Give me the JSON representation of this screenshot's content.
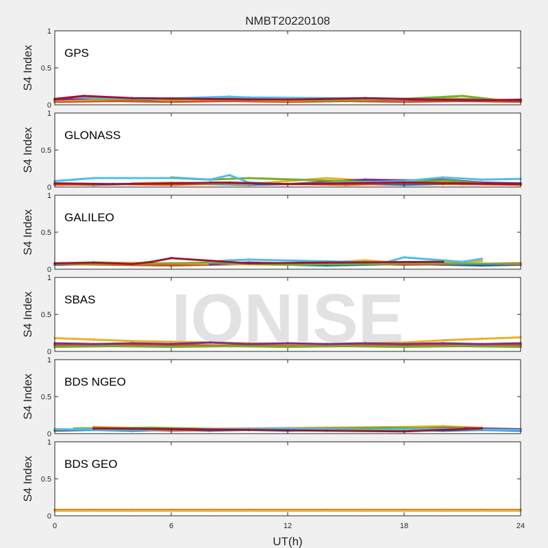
{
  "figure_title": "NMBT20220108",
  "watermark": "IONISE",
  "chart_data": {
    "type": "scatter",
    "title": "NMBT20220108",
    "xlabel": "UT(h)",
    "ylabel": "S4 Index",
    "xlim": [
      0,
      24
    ],
    "ylim": [
      0,
      1
    ],
    "xticks": [
      "0",
      "6",
      "12",
      "18",
      "24"
    ],
    "yticks": [
      "0",
      "0.5",
      "1"
    ],
    "grid": false,
    "series_colors": [
      "#0072bd",
      "#d95319",
      "#edb120",
      "#7e2f8e",
      "#77ac30",
      "#4dbeee",
      "#a2142f"
    ],
    "panels": [
      {
        "name": "GPS",
        "series": [
          {
            "x": [
              0,
              2,
              4,
              6,
              8,
              10,
              12,
              14,
              16,
              18,
              20,
              22,
              24
            ],
            "y": [
              0.05,
              0.07,
              0.06,
              0.08,
              0.07,
              0.06,
              0.05,
              0.07,
              0.06,
              0.08,
              0.07,
              0.06,
              0.05
            ]
          },
          {
            "x": [
              0,
              3,
              6,
              9,
              12,
              15,
              18,
              21,
              24
            ],
            "y": [
              0.04,
              0.05,
              0.04,
              0.05,
              0.04,
              0.05,
              0.04,
              0.05,
              0.04
            ]
          },
          {
            "x": [
              0,
              4,
              8,
              12,
              16,
              20,
              24
            ],
            "y": [
              0.06,
              0.08,
              0.07,
              0.06,
              0.07,
              0.09,
              0.06
            ]
          },
          {
            "x": [
              0,
              2,
              6,
              10,
              14,
              18,
              22,
              24
            ],
            "y": [
              0.07,
              0.09,
              0.08,
              0.07,
              0.08,
              0.07,
              0.06,
              0.07
            ]
          },
          {
            "x": [
              2,
              6,
              10,
              14,
              18,
              21,
              23
            ],
            "y": [
              0.08,
              0.07,
              0.09,
              0.06,
              0.08,
              0.12,
              0.06
            ]
          },
          {
            "x": [
              1,
              5,
              9,
              10,
              14,
              18,
              22
            ],
            "y": [
              0.1,
              0.08,
              0.11,
              0.1,
              0.09,
              0.08,
              0.07
            ]
          },
          {
            "x": [
              0,
              1.5,
              4,
              8,
              12,
              16,
              20,
              24
            ],
            "y": [
              0.08,
              0.12,
              0.09,
              0.08,
              0.07,
              0.09,
              0.07,
              0.06
            ]
          }
        ]
      },
      {
        "name": "GLONASS",
        "series": [
          {
            "x": [
              0,
              2,
              4,
              6,
              8,
              10,
              12,
              14,
              16,
              18,
              20,
              22,
              24
            ],
            "y": [
              0.04,
              0.03,
              0.04,
              0.05,
              0.04,
              0.03,
              0.04,
              0.05,
              0.04,
              0.03,
              0.04,
              0.05,
              0.04
            ]
          },
          {
            "x": [
              0,
              3,
              6,
              9,
              12,
              15,
              18,
              21,
              24
            ],
            "y": [
              0.03,
              0.04,
              0.03,
              0.05,
              0.04,
              0.03,
              0.05,
              0.04,
              0.03
            ]
          },
          {
            "x": [
              4,
              6,
              8,
              10,
              14,
              16,
              18,
              20,
              22
            ],
            "y": [
              0.05,
              0.06,
              0.05,
              0.04,
              0.12,
              0.09,
              0.08,
              0.07,
              0.06
            ]
          },
          {
            "x": [
              8,
              10,
              12,
              16,
              18,
              20,
              22,
              24
            ],
            "y": [
              0.06,
              0.05,
              0.04,
              0.1,
              0.09,
              0.1,
              0.06,
              0.05
            ]
          },
          {
            "x": [
              6,
              8,
              10,
              16,
              18,
              20,
              22
            ],
            "y": [
              0.13,
              0.1,
              0.12,
              0.07,
              0.06,
              0.09,
              0.05
            ]
          },
          {
            "x": [
              0,
              1,
              2,
              6,
              8,
              9,
              10,
              12,
              18,
              20,
              22,
              24
            ],
            "y": [
              0.08,
              0.1,
              0.12,
              0.12,
              0.1,
              0.16,
              0.06,
              0.04,
              0.08,
              0.13,
              0.1,
              0.11
            ]
          },
          {
            "x": [
              0,
              3,
              6,
              9,
              12,
              15,
              18,
              21,
              24
            ],
            "y": [
              0.05,
              0.04,
              0.05,
              0.06,
              0.04,
              0.05,
              0.06,
              0.05,
              0.04
            ]
          }
        ]
      },
      {
        "name": "GALILEO",
        "series": [
          {
            "x": [
              0,
              2,
              4,
              6,
              8,
              10,
              12,
              14,
              16,
              18,
              20,
              22,
              24
            ],
            "y": [
              0.06,
              0.07,
              0.06,
              0.05,
              0.06,
              0.07,
              0.06,
              0.05,
              0.06,
              0.07,
              0.06,
              0.05,
              0.06
            ]
          },
          {
            "x": [
              0,
              3,
              6,
              9,
              12,
              15,
              18,
              21,
              24
            ],
            "y": [
              0.07,
              0.06,
              0.05,
              0.07,
              0.06,
              0.08,
              0.06,
              0.07,
              0.08
            ]
          },
          {
            "x": [
              2,
              6,
              10,
              12,
              16,
              17,
              20,
              22
            ],
            "y": [
              0.09,
              0.08,
              0.07,
              0.06,
              0.12,
              0.1,
              0.09,
              0.11
            ]
          },
          {
            "x": [
              8,
              10,
              12,
              14,
              18,
              20,
              24
            ],
            "y": [
              0.07,
              0.09,
              0.08,
              0.1,
              0.07,
              0.08,
              0.06
            ]
          },
          {
            "x": [
              0,
              4,
              8,
              12,
              16,
              20,
              24
            ],
            "y": [
              0.08,
              0.07,
              0.09,
              0.06,
              0.07,
              0.08,
              0.07
            ]
          },
          {
            "x": [
              8,
              9,
              10,
              17,
              18,
              21,
              22
            ],
            "y": [
              0.1,
              0.12,
              0.13,
              0.09,
              0.16,
              0.1,
              0.14
            ]
          },
          {
            "x": [
              0,
              2,
              4,
              5,
              6,
              10,
              14,
              20
            ],
            "y": [
              0.08,
              0.09,
              0.07,
              0.1,
              0.15,
              0.08,
              0.09,
              0.1
            ]
          }
        ]
      },
      {
        "name": "SBAS",
        "series": [
          {
            "x": [
              0,
              2,
              4,
              6,
              8,
              10,
              12,
              14,
              16,
              18,
              20,
              22,
              24
            ],
            "y": [
              0.08,
              0.07,
              0.08,
              0.07,
              0.08,
              0.07,
              0.08,
              0.07,
              0.08,
              0.07,
              0.08,
              0.07,
              0.08
            ]
          },
          {
            "x": [
              0,
              3,
              6,
              9,
              12,
              15,
              18,
              21,
              24
            ],
            "y": [
              0.09,
              0.08,
              0.09,
              0.08,
              0.09,
              0.08,
              0.09,
              0.08,
              0.09
            ]
          },
          {
            "x": [
              0,
              2,
              4,
              6,
              8,
              10,
              12,
              14,
              16,
              18,
              20,
              22,
              24
            ],
            "y": [
              0.18,
              0.16,
              0.14,
              0.13,
              0.12,
              0.11,
              0.1,
              0.1,
              0.11,
              0.12,
              0.15,
              0.17,
              0.19
            ]
          },
          {
            "x": [
              0,
              2,
              4,
              6,
              8,
              10,
              12,
              14,
              16,
              18,
              20,
              22,
              24
            ],
            "y": [
              0.11,
              0.1,
              0.11,
              0.1,
              0.12,
              0.1,
              0.11,
              0.1,
              0.11,
              0.1,
              0.11,
              0.1,
              0.11
            ]
          },
          {
            "x": [
              0,
              3,
              6,
              9,
              12,
              15,
              18,
              21,
              24
            ],
            "y": [
              0.06,
              0.07,
              0.06,
              0.07,
              0.06,
              0.07,
              0.06,
              0.07,
              0.06
            ]
          },
          {
            "x": [],
            "y": []
          },
          {
            "x": [],
            "y": []
          }
        ]
      },
      {
        "name": "BDS NGEO",
        "series": [
          {
            "x": [
              0,
              2,
              4,
              6,
              8,
              10,
              12,
              14,
              16,
              18,
              20,
              22,
              24
            ],
            "y": [
              0.04,
              0.05,
              0.04,
              0.05,
              0.04,
              0.05,
              0.04,
              0.05,
              0.04,
              0.05,
              0.04,
              0.05,
              0.04
            ]
          },
          {
            "x": [
              0,
              3,
              6,
              9,
              12,
              15,
              18,
              21,
              24
            ],
            "y": [
              0.05,
              0.06,
              0.04,
              0.05,
              0.06,
              0.05,
              0.04,
              0.06,
              0.05
            ]
          },
          {
            "x": [
              2,
              6,
              10,
              14,
              18,
              20,
              22
            ],
            "y": [
              0.09,
              0.06,
              0.07,
              0.08,
              0.09,
              0.1,
              0.08
            ]
          },
          {
            "x": [
              4,
              8,
              12,
              16,
              20,
              24
            ],
            "y": [
              0.06,
              0.05,
              0.07,
              0.06,
              0.08,
              0.06
            ]
          },
          {
            "x": [
              1,
              5,
              9,
              13,
              17,
              21
            ],
            "y": [
              0.07,
              0.08,
              0.06,
              0.07,
              0.08,
              0.07
            ]
          },
          {
            "x": [
              0,
              4,
              8,
              12,
              16,
              20,
              24
            ],
            "y": [
              0.06,
              0.05,
              0.06,
              0.07,
              0.05,
              0.06,
              0.05
            ]
          },
          {
            "x": [
              2,
              6,
              10,
              14,
              18,
              22
            ],
            "y": [
              0.07,
              0.06,
              0.05,
              0.04,
              0.03,
              0.07
            ]
          }
        ]
      },
      {
        "name": "BDS GEO",
        "series": [
          {
            "x": [
              0,
              4,
              8,
              12,
              16,
              20,
              24
            ],
            "y": [
              0.07,
              0.07,
              0.07,
              0.07,
              0.07,
              0.07,
              0.07
            ]
          },
          {
            "x": [
              0,
              2,
              4,
              6,
              8,
              10,
              12,
              14,
              16,
              18,
              20,
              22,
              24
            ],
            "y": [
              0.08,
              0.08,
              0.08,
              0.08,
              0.08,
              0.08,
              0.08,
              0.08,
              0.08,
              0.08,
              0.08,
              0.08,
              0.08
            ]
          },
          {
            "x": [
              0,
              2,
              4,
              6,
              8,
              10,
              12,
              14,
              16,
              18,
              20,
              22,
              24
            ],
            "y": [
              0.07,
              0.07,
              0.07,
              0.07,
              0.07,
              0.07,
              0.07,
              0.07,
              0.07,
              0.07,
              0.07,
              0.07,
              0.07
            ]
          },
          {
            "x": [],
            "y": []
          },
          {
            "x": [],
            "y": []
          },
          {
            "x": [],
            "y": []
          },
          {
            "x": [],
            "y": []
          }
        ]
      }
    ]
  }
}
